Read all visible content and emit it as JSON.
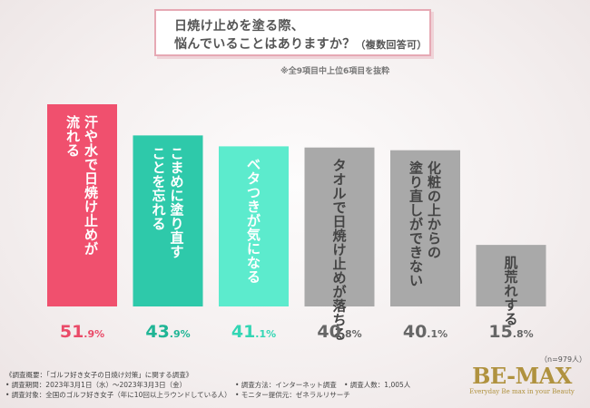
{
  "title": {
    "line1": "日焼け止めを塗る際、",
    "line2_main": "悩んでいることはありますか？",
    "line2_small": "（複数回答可）"
  },
  "note": "※全9項目中上位6項目を抜粋",
  "sample_size": "（n=979人）",
  "chart_data": {
    "type": "bar",
    "title": "日焼け止めを塗る際、悩んでいることはありますか？（複数回答可）",
    "unit": "%",
    "ylim": [
      0,
      60
    ],
    "categories": [
      "汗や水で日焼け止めが流れる",
      "こまめに塗り直すことを忘れる",
      "ベタつきが気になる",
      "タオルで日焼け止めが落ちる",
      "化粧の上からの塗り直しができない",
      "肌荒れする"
    ],
    "label_lines": [
      [
        "汗や水で日焼け止めが",
        "流れる"
      ],
      [
        "こまめに塗り直す",
        "ことを忘れる"
      ],
      [
        "ベタつきが気になる"
      ],
      [
        "タオルで日焼け止めが落ちる"
      ],
      [
        "化粧の上からの",
        "塗り直しができない"
      ],
      [
        "肌荒れする"
      ]
    ],
    "values": [
      51.9,
      43.9,
      41.1,
      40.8,
      40.1,
      15.8
    ],
    "value_labels": [
      {
        "int": "51",
        "dec": ".9%"
      },
      {
        "int": "43",
        "dec": ".9%"
      },
      {
        "int": "41",
        "dec": ".1%"
      },
      {
        "int": "40",
        "dec": ".8%"
      },
      {
        "int": "40",
        "dec": ".1%"
      },
      {
        "int": "15",
        "dec": ".8%"
      }
    ],
    "colors": [
      "#f0506e",
      "#2ec9aa",
      "#5cebcd",
      "#a9a9a9",
      "#a9a9a9",
      "#a9a9a9"
    ],
    "value_colors": [
      "#ea4a68",
      "#1fb595",
      "#33d6b4",
      "#666666",
      "#666666",
      "#666666"
    ],
    "label_colors": [
      "#ffffff",
      "#ffffff",
      "#ffffff",
      "#444444",
      "#444444",
      "#444444"
    ]
  },
  "footer": {
    "row1": "《調査概要：「ゴルフ好き女子の日焼け対策」に関する調査》",
    "row2_col1": "• 調査期間：2023年3月1日（水）～2023年3月3日（金）",
    "row2_col2": "• 調査方法：インターネット調査",
    "row2_col3": "• 調査人数：1,005人",
    "row3_col1": "• 調査対象：全国のゴルフ好き女子（年に10回以上ラウンドしている人）",
    "row3_col2": "• モニター提供元：ゼネラルリサーチ"
  },
  "logo": {
    "name": "BE-MAX",
    "tagline": "Everyday Be max in your Beauty"
  }
}
